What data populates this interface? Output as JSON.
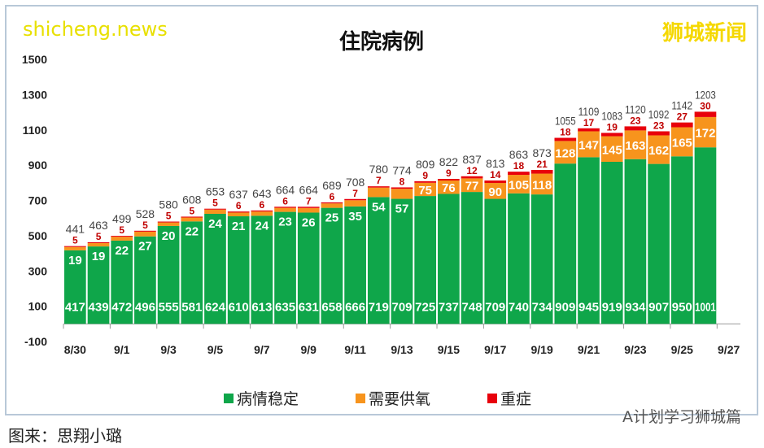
{
  "chart_data": {
    "type": "bar",
    "stacked": true,
    "title": "住院病例",
    "categories": [
      "8/30",
      "8/31",
      "9/1",
      "9/2",
      "9/3",
      "9/4",
      "9/5",
      "9/6",
      "9/7",
      "9/8",
      "9/9",
      "9/10",
      "9/11",
      "9/12",
      "9/13",
      "9/14",
      "9/15",
      "9/16",
      "9/17",
      "9/18",
      "9/19",
      "9/20",
      "9/21",
      "9/22",
      "9/23",
      "9/24",
      "9/25",
      "9/26",
      "9/27"
    ],
    "tick_labels_x": [
      "8/30",
      "9/1",
      "9/3",
      "9/5",
      "9/7",
      "9/9",
      "9/11",
      "9/13",
      "9/15",
      "9/17",
      "9/19",
      "9/21",
      "9/23",
      "9/25",
      "9/27"
    ],
    "series": [
      {
        "name": "病情稳定",
        "color": "#0fa64a",
        "values": [
          417,
          439,
          472,
          496,
          555,
          581,
          624,
          610,
          613,
          635,
          631,
          658,
          666,
          719,
          709,
          725,
          737,
          748,
          709,
          740,
          734,
          909,
          945,
          919,
          934,
          907,
          950,
          1001,
          null
        ]
      },
      {
        "name": "需要供氧",
        "color": "#f7941d",
        "values": [
          19,
          19,
          22,
          27,
          20,
          22,
          24,
          21,
          24,
          23,
          26,
          25,
          35,
          54,
          57,
          75,
          76,
          77,
          90,
          105,
          118,
          128,
          147,
          145,
          163,
          162,
          165,
          172,
          null
        ]
      },
      {
        "name": "重症",
        "color": "#e8000b",
        "values": [
          5,
          5,
          5,
          5,
          5,
          5,
          5,
          6,
          6,
          6,
          7,
          6,
          7,
          7,
          8,
          9,
          9,
          12,
          14,
          18,
          21,
          18,
          17,
          19,
          23,
          23,
          27,
          30,
          null
        ]
      }
    ],
    "totals": [
      441,
      463,
      499,
      528,
      580,
      608,
      653,
      637,
      643,
      664,
      664,
      689,
      708,
      780,
      774,
      809,
      822,
      837,
      813,
      863,
      873,
      1055,
      1109,
      1083,
      1120,
      1092,
      1142,
      1203,
      null
    ],
    "ylim": [
      -100,
      1500
    ],
    "yticks": [
      -100,
      100,
      300,
      500,
      700,
      900,
      1100,
      1300,
      1500
    ],
    "grid": false,
    "legend": "bottom"
  },
  "watermarks": {
    "top_right": "狮城新闻",
    "bottom_left": "shicheng.news",
    "bottom_right": "A计划学习狮城篇"
  },
  "caption": "图来：思翔小璐"
}
